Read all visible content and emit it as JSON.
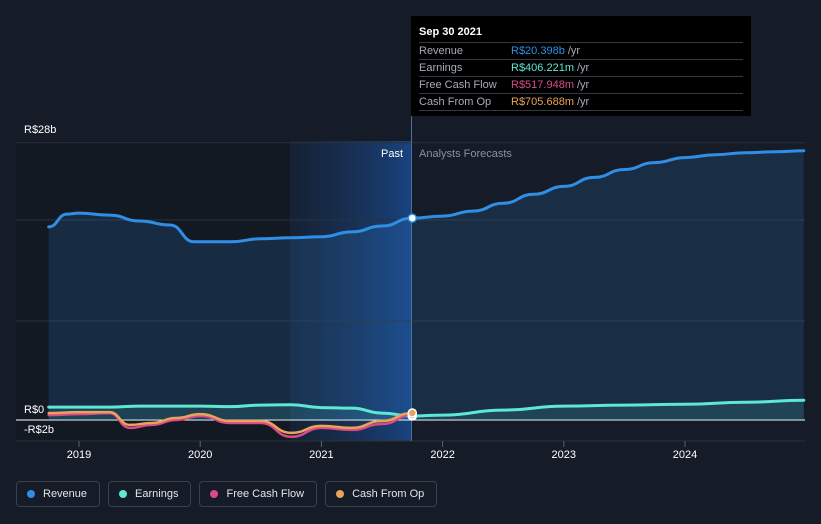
{
  "chart_data": {
    "type": "line",
    "y_axis": {
      "top_label": "R$28b",
      "zero_label": "R$0",
      "bottom_label": "-R$2b",
      "ylim": [
        -2,
        28
      ],
      "unit": "R$b"
    },
    "x_axis": {
      "ticks": [
        "2019",
        "2020",
        "2021",
        "2022",
        "2023",
        "2024"
      ]
    },
    "divider": {
      "past_label": "Past",
      "forecast_label": "Analysts Forecasts",
      "date": "2021-09-30"
    },
    "series": [
      {
        "name": "Revenue",
        "color": "#2f8fe6",
        "points": [
          [
            2018.75,
            19.5
          ],
          [
            2018.9,
            20.8
          ],
          [
            2019.0,
            20.9
          ],
          [
            2019.25,
            20.7
          ],
          [
            2019.5,
            20.1
          ],
          [
            2019.75,
            19.7
          ],
          [
            2019.95,
            18.0
          ],
          [
            2020.25,
            18.0
          ],
          [
            2020.5,
            18.3
          ],
          [
            2020.75,
            18.4
          ],
          [
            2021.0,
            18.5
          ],
          [
            2021.25,
            19.0
          ],
          [
            2021.5,
            19.6
          ],
          [
            2021.75,
            20.398
          ],
          [
            2022.0,
            20.6
          ],
          [
            2022.25,
            21.1
          ],
          [
            2022.5,
            21.9
          ],
          [
            2022.75,
            22.8
          ],
          [
            2023.0,
            23.6
          ],
          [
            2023.25,
            24.5
          ],
          [
            2023.5,
            25.3
          ],
          [
            2023.75,
            26.0
          ],
          [
            2024.0,
            26.5
          ],
          [
            2024.25,
            26.8
          ],
          [
            2024.5,
            27.0
          ],
          [
            2024.75,
            27.1
          ],
          [
            2024.98,
            27.2
          ]
        ]
      },
      {
        "name": "Earnings",
        "color": "#5ee7d2",
        "points": [
          [
            2018.75,
            1.3
          ],
          [
            2019.0,
            1.3
          ],
          [
            2019.25,
            1.3
          ],
          [
            2019.5,
            1.4
          ],
          [
            2019.75,
            1.4
          ],
          [
            2020.0,
            1.4
          ],
          [
            2020.25,
            1.35
          ],
          [
            2020.5,
            1.5
          ],
          [
            2020.75,
            1.55
          ],
          [
            2021.0,
            1.25
          ],
          [
            2021.25,
            1.2
          ],
          [
            2021.5,
            0.7
          ],
          [
            2021.75,
            0.406
          ],
          [
            2022.0,
            0.5
          ],
          [
            2022.5,
            1.0
          ],
          [
            2023.0,
            1.4
          ],
          [
            2023.5,
            1.5
          ],
          [
            2024.0,
            1.6
          ],
          [
            2024.5,
            1.8
          ],
          [
            2024.98,
            2.0
          ]
        ]
      },
      {
        "name": "Free Cash Flow",
        "color": "#d94a87",
        "points": [
          [
            2018.75,
            0.5
          ],
          [
            2019.0,
            0.6
          ],
          [
            2019.25,
            0.7
          ],
          [
            2019.42,
            -0.8
          ],
          [
            2019.6,
            -0.5
          ],
          [
            2019.8,
            0.0
          ],
          [
            2020.0,
            0.4
          ],
          [
            2020.25,
            -0.3
          ],
          [
            2020.5,
            -0.3
          ],
          [
            2020.75,
            -1.7
          ],
          [
            2021.0,
            -0.8
          ],
          [
            2021.25,
            -1.0
          ],
          [
            2021.5,
            -0.4
          ],
          [
            2021.75,
            0.518
          ]
        ]
      },
      {
        "name": "Cash From Op",
        "color": "#e8a35c",
        "points": [
          [
            2018.75,
            0.7
          ],
          [
            2019.0,
            0.8
          ],
          [
            2019.25,
            0.8
          ],
          [
            2019.42,
            -0.5
          ],
          [
            2019.6,
            -0.3
          ],
          [
            2019.8,
            0.2
          ],
          [
            2020.0,
            0.6
          ],
          [
            2020.25,
            -0.1
          ],
          [
            2020.5,
            -0.1
          ],
          [
            2020.75,
            -1.3
          ],
          [
            2021.0,
            -0.6
          ],
          [
            2021.25,
            -0.8
          ],
          [
            2021.5,
            -0.1
          ],
          [
            2021.75,
            0.706
          ]
        ]
      }
    ]
  },
  "tooltip": {
    "date": "Sep 30 2021",
    "rows": [
      {
        "label": "Revenue",
        "value": "R$20.398b",
        "unit": "/yr",
        "color": "#2f8fe6"
      },
      {
        "label": "Earnings",
        "value": "R$406.221m",
        "unit": "/yr",
        "color": "#5ee7d2"
      },
      {
        "label": "Free Cash Flow",
        "value": "R$517.948m",
        "unit": "/yr",
        "color": "#d94a87"
      },
      {
        "label": "Cash From Op",
        "value": "R$705.688m",
        "unit": "/yr",
        "color": "#e8a35c"
      }
    ]
  },
  "legend": [
    {
      "label": "Revenue",
      "color": "#2f8fe6"
    },
    {
      "label": "Earnings",
      "color": "#5ee7d2"
    },
    {
      "label": "Free Cash Flow",
      "color": "#d94a87"
    },
    {
      "label": "Cash From Op",
      "color": "#e8a35c"
    }
  ]
}
